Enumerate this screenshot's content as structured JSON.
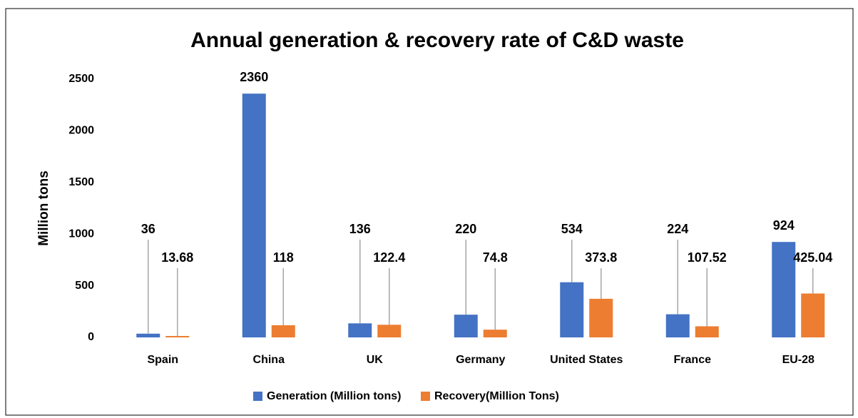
{
  "chart_data": {
    "type": "bar",
    "title": "Annual generation & recovery rate of C&D waste",
    "y_label": "Million tons",
    "categories": [
      "Spain",
      "China",
      "UK",
      "Germany",
      "United States",
      "France",
      "EU-28"
    ],
    "series": [
      {
        "name": "Generation (Million tons)",
        "color": "#4472c4",
        "values": [
          36,
          2360,
          136,
          220,
          534,
          224,
          924
        ]
      },
      {
        "name": "Recovery(Million Tons)",
        "color": "#ed7d31",
        "values": [
          13.68,
          118,
          122.4,
          74.8,
          373.8,
          107.52,
          425.04
        ]
      }
    ],
    "ylim": [
      0,
      2500
    ],
    "yticks": [
      0,
      500,
      1000,
      1500,
      2000,
      2500
    ],
    "grid": false,
    "legend": "bottom"
  }
}
